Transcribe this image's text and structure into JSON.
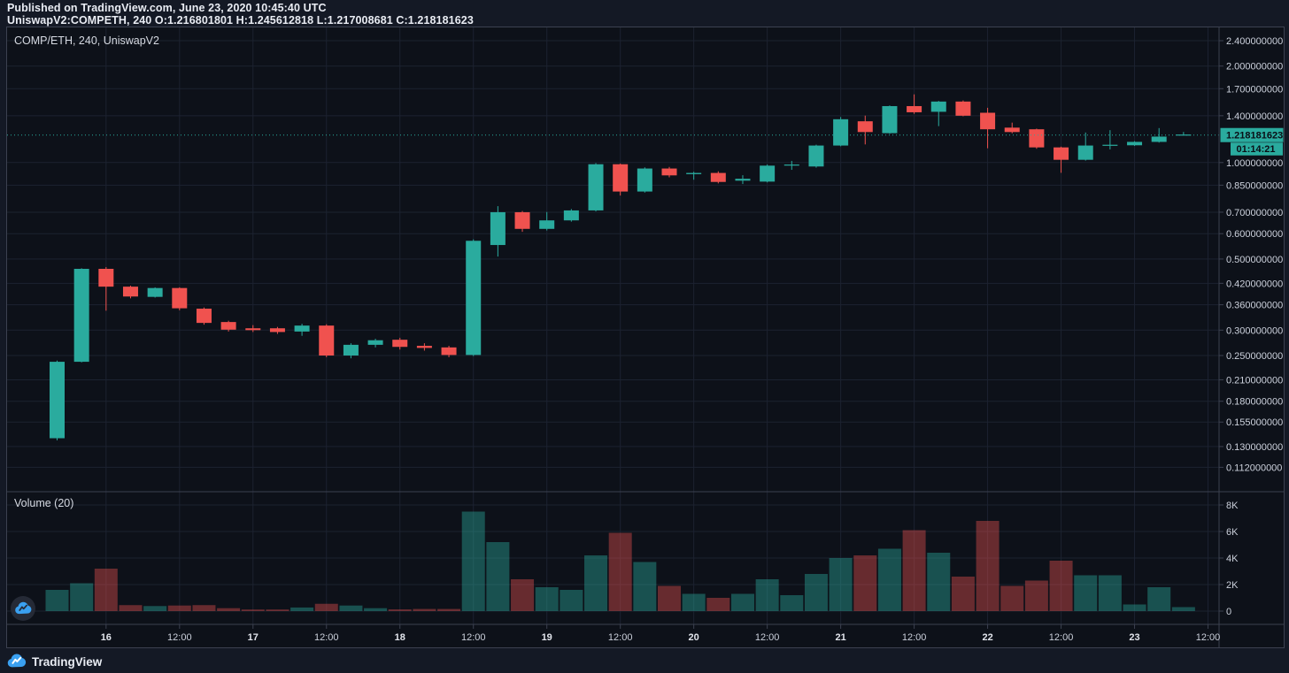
{
  "header": {
    "published_line": "Published on TradingView.com, June 23, 2020 10:45:40 UTC",
    "symbol_line": "UniswapV2:COMPETH, 240  O:1.216801801  H:1.245612818  L:1.217008681  C:1.218181623"
  },
  "legend": "COMP/ETH, 240, UniswapV2",
  "volume_indicator_label": "Volume (20)",
  "price_label": "1.218181623",
  "countdown_label": "01:14:21",
  "footer": {
    "brand": "TradingView"
  },
  "colors": {
    "up": "#2aab9e",
    "down": "#f0524f",
    "vol_up": "rgba(42,171,158,0.42)",
    "vol_down": "rgba(240,82,79,0.40)",
    "price_line": "#2aab9e",
    "price_label_bg": "#2aab9e",
    "price_label_text": "#0a0e16",
    "grid": "#1c2230",
    "axis_text": "#ccd1dc",
    "axis_text_major": "#e2e5ec",
    "pane_border": "#3c4150",
    "logo_blue": "#3aa0f0",
    "watermark_circle": "#272c38"
  },
  "chart_data": {
    "type": "candlestick",
    "title": "COMP/ETH, 240, UniswapV2",
    "symbol": "UniswapV2:COMPETH",
    "interval_minutes": 240,
    "price_scale": "log",
    "ohlc_readout": {
      "open": "1.216801801",
      "high": "1.245612818",
      "low": "1.217008681",
      "close": "1.218181623"
    },
    "current_price": 1.218181623,
    "countdown_to_close": "01:14:21",
    "legend_position": "top-left",
    "grid": true,
    "price_ticks": [
      {
        "label": "2.400000000",
        "value": 2.4
      },
      {
        "label": "2.000000000",
        "value": 2.0
      },
      {
        "label": "1.700000000",
        "value": 1.7
      },
      {
        "label": "1.400000000",
        "value": 1.4
      },
      {
        "label": "1.000000000",
        "value": 1.0
      },
      {
        "label": "0.850000000",
        "value": 0.85
      },
      {
        "label": "0.700000000",
        "value": 0.7
      },
      {
        "label": "0.600000000",
        "value": 0.6
      },
      {
        "label": "0.500000000",
        "value": 0.5
      },
      {
        "label": "0.420000000",
        "value": 0.42
      },
      {
        "label": "0.360000000",
        "value": 0.36
      },
      {
        "label": "0.300000000",
        "value": 0.3
      },
      {
        "label": "0.250000000",
        "value": 0.25
      },
      {
        "label": "0.210000000",
        "value": 0.21
      },
      {
        "label": "0.180000000",
        "value": 0.18
      },
      {
        "label": "0.155000000",
        "value": 0.155
      },
      {
        "label": "0.130000000",
        "value": 0.13
      },
      {
        "label": "0.112000000",
        "value": 0.112
      }
    ],
    "volume_ticks": [
      {
        "label": "8K",
        "value": 8000
      },
      {
        "label": "6K",
        "value": 6000
      },
      {
        "label": "4K",
        "value": 4000
      },
      {
        "label": "2K",
        "value": 2000
      },
      {
        "label": "0",
        "value": 0
      }
    ],
    "time_ticks": {
      "labels": [
        "16",
        "12:00",
        "17",
        "12:00",
        "18",
        "12:00",
        "19",
        "12:00",
        "20",
        "12:00",
        "21",
        "12:00",
        "22",
        "12:00",
        "23",
        "12:00"
      ],
      "first_candle_index": 2,
      "candles_per_tick": 3
    },
    "candle_fields": [
      "time",
      "open",
      "high",
      "low",
      "close",
      "volume"
    ],
    "candles": [
      [
        "Jun 15 16:00",
        0.138,
        0.241,
        0.136,
        0.239,
        1600
      ],
      [
        "Jun 15 20:00",
        0.239,
        0.468,
        0.238,
        0.466,
        2100
      ],
      [
        "Jun 16 00:00",
        0.466,
        0.472,
        0.345,
        0.41,
        3200
      ],
      [
        "Jun 16 04:00",
        0.41,
        0.413,
        0.377,
        0.382,
        450
      ],
      [
        "Jun 16 08:00",
        0.381,
        0.408,
        0.379,
        0.406,
        380
      ],
      [
        "Jun 16 12:00",
        0.406,
        0.408,
        0.346,
        0.351,
        420
      ],
      [
        "Jun 16 16:00",
        0.35,
        0.353,
        0.312,
        0.316,
        450
      ],
      [
        "Jun 16 20:00",
        0.318,
        0.321,
        0.297,
        0.301,
        220
      ],
      [
        "Jun 17 00:00",
        0.304,
        0.311,
        0.296,
        0.3,
        120
      ],
      [
        "Jun 17 04:00",
        0.304,
        0.307,
        0.292,
        0.296,
        120
      ],
      [
        "Jun 17 08:00",
        0.297,
        0.314,
        0.288,
        0.31,
        270
      ],
      [
        "Jun 17 12:00",
        0.31,
        0.313,
        0.247,
        0.25,
        550
      ],
      [
        "Jun 17 16:00",
        0.25,
        0.273,
        0.245,
        0.27,
        420
      ],
      [
        "Jun 17 20:00",
        0.27,
        0.282,
        0.265,
        0.279,
        220
      ],
      [
        "Jun 18 00:00",
        0.28,
        0.284,
        0.261,
        0.266,
        130
      ],
      [
        "Jun 18 04:00",
        0.268,
        0.273,
        0.259,
        0.264,
        160
      ],
      [
        "Jun 18 08:00",
        0.265,
        0.268,
        0.247,
        0.251,
        160
      ],
      [
        "Jun 18 12:00",
        0.251,
        0.576,
        0.249,
        0.57,
        7500
      ],
      [
        "Jun 18 16:00",
        0.553,
        0.731,
        0.509,
        0.7,
        5200
      ],
      [
        "Jun 18 20:00",
        0.7,
        0.706,
        0.608,
        0.621,
        2400
      ],
      [
        "Jun 19 00:00",
        0.621,
        0.701,
        0.614,
        0.66,
        1800
      ],
      [
        "Jun 19 04:00",
        0.66,
        0.716,
        0.654,
        0.709,
        1600
      ],
      [
        "Jun 19 08:00",
        0.709,
        0.996,
        0.704,
        0.988,
        4200
      ],
      [
        "Jun 19 12:00",
        0.988,
        0.993,
        0.789,
        0.812,
        5900
      ],
      [
        "Jun 19 16:00",
        0.812,
        0.966,
        0.806,
        0.958,
        3700
      ],
      [
        "Jun 19 20:00",
        0.958,
        0.969,
        0.899,
        0.912,
        1900
      ],
      [
        "Jun 20 00:00",
        0.92,
        0.936,
        0.884,
        0.928,
        1300
      ],
      [
        "Jun 20 04:00",
        0.928,
        0.939,
        0.861,
        0.87,
        1000
      ],
      [
        "Jun 20 08:00",
        0.878,
        0.913,
        0.857,
        0.89,
        1300
      ],
      [
        "Jun 20 12:00",
        0.872,
        0.986,
        0.867,
        0.978,
        2400
      ],
      [
        "Jun 20 16:00",
        0.978,
        1.012,
        0.949,
        0.982,
        1200
      ],
      [
        "Jun 20 20:00",
        0.972,
        1.137,
        0.964,
        1.13,
        2800
      ],
      [
        "Jun 21 00:00",
        1.13,
        1.387,
        1.124,
        1.365,
        4000
      ],
      [
        "Jun 21 04:00",
        1.345,
        1.401,
        1.139,
        1.245,
        4200
      ],
      [
        "Jun 21 08:00",
        1.235,
        1.507,
        1.229,
        1.5,
        4700
      ],
      [
        "Jun 21 12:00",
        1.5,
        1.632,
        1.419,
        1.435,
        6100
      ],
      [
        "Jun 21 16:00",
        1.44,
        1.557,
        1.299,
        1.55,
        4400
      ],
      [
        "Jun 21 20:00",
        1.55,
        1.562,
        1.394,
        1.4,
        2600
      ],
      [
        "Jun 22 00:00",
        1.43,
        1.482,
        1.108,
        1.27,
        6800
      ],
      [
        "Jun 22 04:00",
        1.285,
        1.332,
        1.234,
        1.245,
        1900
      ],
      [
        "Jun 22 08:00",
        1.27,
        1.276,
        1.104,
        1.115,
        2300
      ],
      [
        "Jun 22 12:00",
        1.115,
        1.121,
        0.929,
        1.02,
        3800
      ],
      [
        "Jun 22 16:00",
        1.02,
        1.241,
        1.014,
        1.13,
        2700
      ],
      [
        "Jun 22 20:00",
        1.125,
        1.262,
        1.099,
        1.132,
        2700
      ],
      [
        "Jun 23 00:00",
        1.132,
        1.166,
        1.127,
        1.16,
        500
      ],
      [
        "Jun 23 04:00",
        1.16,
        1.281,
        1.154,
        1.205,
        1800
      ],
      [
        "Jun 23 08:00",
        1.216801801,
        1.245612818,
        1.217008681,
        1.218181623,
        300
      ]
    ]
  }
}
